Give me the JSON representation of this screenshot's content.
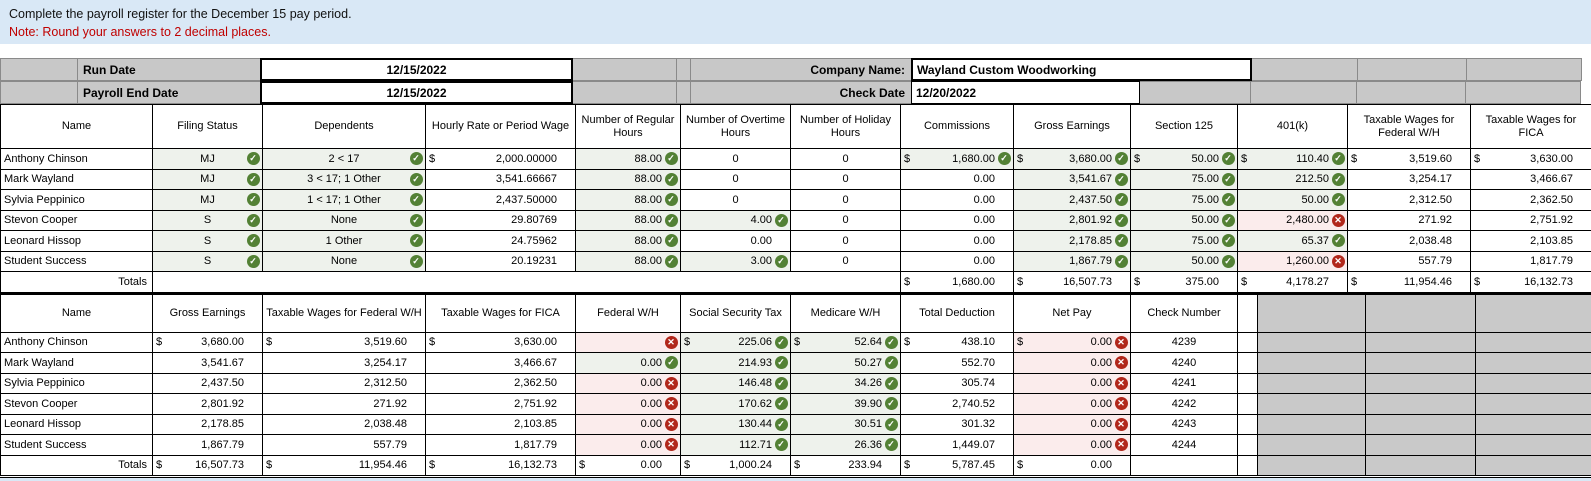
{
  "banner": {
    "line1": "Complete the payroll register for the December 15 pay period.",
    "line2": "Note: Round your answers to 2 decimal places."
  },
  "info": {
    "run_date_label": "Run Date",
    "run_date": "12/15/2022",
    "payroll_end_label": "Payroll End Date",
    "payroll_end_date": "12/15/2022",
    "company_label": "Company Name:",
    "company_name": "Wayland Custom Woodworking",
    "check_date_label": "Check Date",
    "check_date": "12/20/2022"
  },
  "status_colors": {
    "correct_green": "#538135",
    "incorrect_red": "#b1271b",
    "error_text_red": "#c00000",
    "correct_cell_bg": "#eef2ec",
    "incorrect_cell_bg": "#fbecec"
  },
  "payroll_table": {
    "headers": [
      "Name",
      "Filing Status",
      "Dependents",
      "Hourly Rate or Period Wage",
      "Number of Regular Hours",
      "Number of Overtime Hours",
      "Number of Holiday Hours",
      "Commissions",
      "Gross Earnings",
      "Section 125",
      "401(k)",
      "Taxable Wages for Federal W/H",
      "Taxable Wages for FICA"
    ],
    "rows": [
      [
        {
          "v": "Anthony Chinson",
          "al": "l"
        },
        {
          "v": "MJ",
          "al": "ci",
          "ic": "correct",
          "bg": "g"
        },
        {
          "v": "2 < 17",
          "al": "ci",
          "ic": "correct",
          "bg": "g"
        },
        {
          "v": "2,000.00000",
          "d": "$"
        },
        {
          "v": "88.00",
          "ic": "correct",
          "bg": "g"
        },
        {
          "v": "0",
          "al": "c"
        },
        {
          "v": "0",
          "al": "c"
        },
        {
          "v": "1,680.00",
          "d": "$",
          "ic": "correct",
          "bg": "g"
        },
        {
          "v": "3,680.00",
          "d": "$",
          "ic": "correct",
          "bg": "g"
        },
        {
          "v": "50.00",
          "d": "$",
          "ic": "correct",
          "bg": "g"
        },
        {
          "v": "110.40",
          "d": "$",
          "ic": "correct",
          "bg": "g"
        },
        {
          "v": "3,519.60",
          "d": "$"
        },
        {
          "v": "3,630.00",
          "d": "$"
        }
      ],
      [
        {
          "v": "Mark Wayland",
          "al": "l"
        },
        {
          "v": "MJ",
          "al": "ci",
          "ic": "correct",
          "bg": "g"
        },
        {
          "v": "3 < 17; 1 Other",
          "al": "ci",
          "ic": "correct",
          "bg": "g"
        },
        {
          "v": "3,541.66667"
        },
        {
          "v": "88.00",
          "ic": "correct",
          "bg": "g"
        },
        {
          "v": "0",
          "al": "c"
        },
        {
          "v": "0",
          "al": "c"
        },
        {
          "v": "0.00"
        },
        {
          "v": "3,541.67",
          "ic": "correct",
          "bg": "g"
        },
        {
          "v": "75.00",
          "ic": "correct",
          "bg": "g"
        },
        {
          "v": "212.50",
          "ic": "correct",
          "bg": "g"
        },
        {
          "v": "3,254.17"
        },
        {
          "v": "3,466.67"
        }
      ],
      [
        {
          "v": "Sylvia Peppinico",
          "al": "l"
        },
        {
          "v": "MJ",
          "al": "ci",
          "ic": "correct",
          "bg": "g"
        },
        {
          "v": "1 < 17; 1 Other",
          "al": "ci",
          "ic": "correct",
          "bg": "g"
        },
        {
          "v": "2,437.50000"
        },
        {
          "v": "88.00",
          "ic": "correct",
          "bg": "g"
        },
        {
          "v": "0",
          "al": "c"
        },
        {
          "v": "0",
          "al": "c"
        },
        {
          "v": "0.00"
        },
        {
          "v": "2,437.50",
          "ic": "correct",
          "bg": "g"
        },
        {
          "v": "75.00",
          "ic": "correct",
          "bg": "g"
        },
        {
          "v": "50.00",
          "ic": "correct",
          "bg": "g"
        },
        {
          "v": "2,312.50"
        },
        {
          "v": "2,362.50"
        }
      ],
      [
        {
          "v": "Stevon Cooper",
          "al": "l"
        },
        {
          "v": "S",
          "al": "ci",
          "ic": "correct",
          "bg": "g"
        },
        {
          "v": "None",
          "al": "ci",
          "ic": "correct",
          "bg": "g"
        },
        {
          "v": "29.80769"
        },
        {
          "v": "88.00",
          "ic": "correct",
          "bg": "g"
        },
        {
          "v": "4.00",
          "ic": "correct",
          "bg": "g"
        },
        {
          "v": "0",
          "al": "c"
        },
        {
          "v": "0.00"
        },
        {
          "v": "2,801.92",
          "ic": "correct",
          "bg": "g"
        },
        {
          "v": "50.00",
          "ic": "correct",
          "bg": "g"
        },
        {
          "v": "2,480.00",
          "ic": "incorrect",
          "bg": "p"
        },
        {
          "v": "271.92",
          "red": 1
        },
        {
          "v": "2,751.92"
        }
      ],
      [
        {
          "v": "Leonard Hissop",
          "al": "l"
        },
        {
          "v": "S",
          "al": "ci",
          "ic": "correct",
          "bg": "g"
        },
        {
          "v": "1 Other",
          "al": "ci",
          "ic": "correct",
          "bg": "g"
        },
        {
          "v": "24.75962"
        },
        {
          "v": "88.00",
          "ic": "correct",
          "bg": "g"
        },
        {
          "v": "0.00"
        },
        {
          "v": "0",
          "al": "c"
        },
        {
          "v": "0.00"
        },
        {
          "v": "2,178.85",
          "ic": "correct",
          "bg": "g"
        },
        {
          "v": "75.00",
          "ic": "correct",
          "bg": "g"
        },
        {
          "v": "65.37",
          "ic": "correct",
          "bg": "g"
        },
        {
          "v": "2,038.48"
        },
        {
          "v": "2,103.85"
        }
      ],
      [
        {
          "v": "Student Success",
          "al": "l"
        },
        {
          "v": "S",
          "al": "ci",
          "ic": "correct",
          "bg": "g"
        },
        {
          "v": "None",
          "al": "ci",
          "ic": "correct",
          "bg": "g"
        },
        {
          "v": "20.19231"
        },
        {
          "v": "88.00",
          "ic": "correct",
          "bg": "g"
        },
        {
          "v": "3.00",
          "ic": "correct",
          "bg": "g"
        },
        {
          "v": "0",
          "al": "c"
        },
        {
          "v": "0.00"
        },
        {
          "v": "1,867.79",
          "ic": "correct",
          "bg": "g"
        },
        {
          "v": "50.00",
          "ic": "correct",
          "bg": "g"
        },
        {
          "v": "1,260.00",
          "ic": "incorrect",
          "bg": "p"
        },
        {
          "v": "557.79",
          "red": 1
        },
        {
          "v": "1,817.79"
        }
      ]
    ],
    "totals": [
      {
        "v": "Totals",
        "al": "t"
      },
      {
        "v": "",
        "al": "c",
        "cs": 6
      },
      {
        "v": "1,680.00",
        "d": "$"
      },
      {
        "v": "16,507.73",
        "d": "$"
      },
      {
        "v": "375.00",
        "d": "$"
      },
      {
        "v": "4,178.27",
        "d": "$",
        "red": 1
      },
      {
        "v": "11,954.46",
        "d": "$",
        "red": 1
      },
      {
        "v": "16,132.73",
        "d": "$"
      }
    ]
  },
  "deductions_table": {
    "headers": [
      "Name",
      "Gross Earnings",
      "Taxable Wages for Federal W/H",
      "Taxable Wages for FICA",
      "Federal W/H",
      "Social Security Tax",
      "Medicare W/H",
      "Total Deduction",
      "Net Pay",
      "Check Number"
    ],
    "rows": [
      [
        {
          "v": "Anthony Chinson",
          "al": "l"
        },
        {
          "v": "3,680.00",
          "d": "$"
        },
        {
          "v": "3,519.60",
          "d": "$"
        },
        {
          "v": "3,630.00",
          "d": "$"
        },
        {
          "v": "",
          "ic": "incorrect",
          "bg": "p"
        },
        {
          "v": "225.06",
          "d": "$",
          "ic": "correct",
          "bg": "g"
        },
        {
          "v": "52.64",
          "d": "$",
          "ic": "correct",
          "bg": "g"
        },
        {
          "v": "438.10",
          "d": "$",
          "red": 1
        },
        {
          "v": "0.00",
          "d": "$",
          "ic": "incorrect",
          "bg": "p"
        },
        {
          "v": "4239",
          "al": "c"
        }
      ],
      [
        {
          "v": "Mark Wayland",
          "al": "l"
        },
        {
          "v": "3,541.67"
        },
        {
          "v": "3,254.17"
        },
        {
          "v": "3,466.67"
        },
        {
          "v": "0.00",
          "ic": "correct",
          "bg": "g"
        },
        {
          "v": "214.93",
          "ic": "correct",
          "bg": "g"
        },
        {
          "v": "50.27",
          "ic": "correct",
          "bg": "g"
        },
        {
          "v": "552.70"
        },
        {
          "v": "0.00",
          "ic": "incorrect",
          "bg": "p"
        },
        {
          "v": "4240",
          "al": "c"
        }
      ],
      [
        {
          "v": "Sylvia Peppinico",
          "al": "l"
        },
        {
          "v": "2,437.50"
        },
        {
          "v": "2,312.50"
        },
        {
          "v": "2,362.50"
        },
        {
          "v": "0.00",
          "ic": "incorrect",
          "bg": "p"
        },
        {
          "v": "146.48",
          "ic": "correct",
          "bg": "g"
        },
        {
          "v": "34.26",
          "ic": "correct",
          "bg": "g"
        },
        {
          "v": "305.74",
          "red": 1
        },
        {
          "v": "0.00",
          "ic": "incorrect",
          "bg": "p"
        },
        {
          "v": "4241",
          "al": "c"
        }
      ],
      [
        {
          "v": "Stevon Cooper",
          "al": "l"
        },
        {
          "v": "2,801.92"
        },
        {
          "v": "271.92",
          "red": 1
        },
        {
          "v": "2,751.92"
        },
        {
          "v": "0.00",
          "ic": "incorrect",
          "bg": "p"
        },
        {
          "v": "170.62",
          "ic": "correct",
          "bg": "g"
        },
        {
          "v": "39.90",
          "ic": "correct",
          "bg": "g"
        },
        {
          "v": "2,740.52",
          "red": 1
        },
        {
          "v": "0.00",
          "ic": "incorrect",
          "bg": "p"
        },
        {
          "v": "4242",
          "al": "c"
        }
      ],
      [
        {
          "v": "Leonard Hissop",
          "al": "l"
        },
        {
          "v": "2,178.85"
        },
        {
          "v": "2,038.48"
        },
        {
          "v": "2,103.85"
        },
        {
          "v": "0.00",
          "ic": "incorrect",
          "bg": "p"
        },
        {
          "v": "130.44",
          "ic": "correct",
          "bg": "g"
        },
        {
          "v": "30.51",
          "ic": "correct",
          "bg": "g"
        },
        {
          "v": "301.32",
          "red": 1
        },
        {
          "v": "0.00",
          "ic": "incorrect",
          "bg": "p"
        },
        {
          "v": "4243",
          "al": "c"
        }
      ],
      [
        {
          "v": "Student Success",
          "al": "l"
        },
        {
          "v": "1,867.79"
        },
        {
          "v": "557.79",
          "red": 1
        },
        {
          "v": "1,817.79"
        },
        {
          "v": "0.00",
          "ic": "incorrect",
          "bg": "p"
        },
        {
          "v": "112.71",
          "ic": "correct",
          "bg": "g"
        },
        {
          "v": "26.36",
          "ic": "correct",
          "bg": "g"
        },
        {
          "v": "1,449.07",
          "red": 1
        },
        {
          "v": "0.00",
          "ic": "incorrect",
          "bg": "p"
        },
        {
          "v": "4244",
          "al": "c"
        }
      ]
    ],
    "totals": [
      {
        "v": "Totals",
        "al": "t"
      },
      {
        "v": "16,507.73",
        "d": "$"
      },
      {
        "v": "11,954.46",
        "d": "$",
        "red": 1
      },
      {
        "v": "16,132.73",
        "d": "$"
      },
      {
        "v": "0.00",
        "d": "$",
        "red": 1
      },
      {
        "v": "1,000.24",
        "d": "$"
      },
      {
        "v": "233.94",
        "d": "$"
      },
      {
        "v": "5,787.45",
        "d": "$",
        "red": 1
      },
      {
        "v": "0.00",
        "d": "$",
        "red": 1
      },
      {
        "v": "",
        "al": "c"
      }
    ]
  }
}
